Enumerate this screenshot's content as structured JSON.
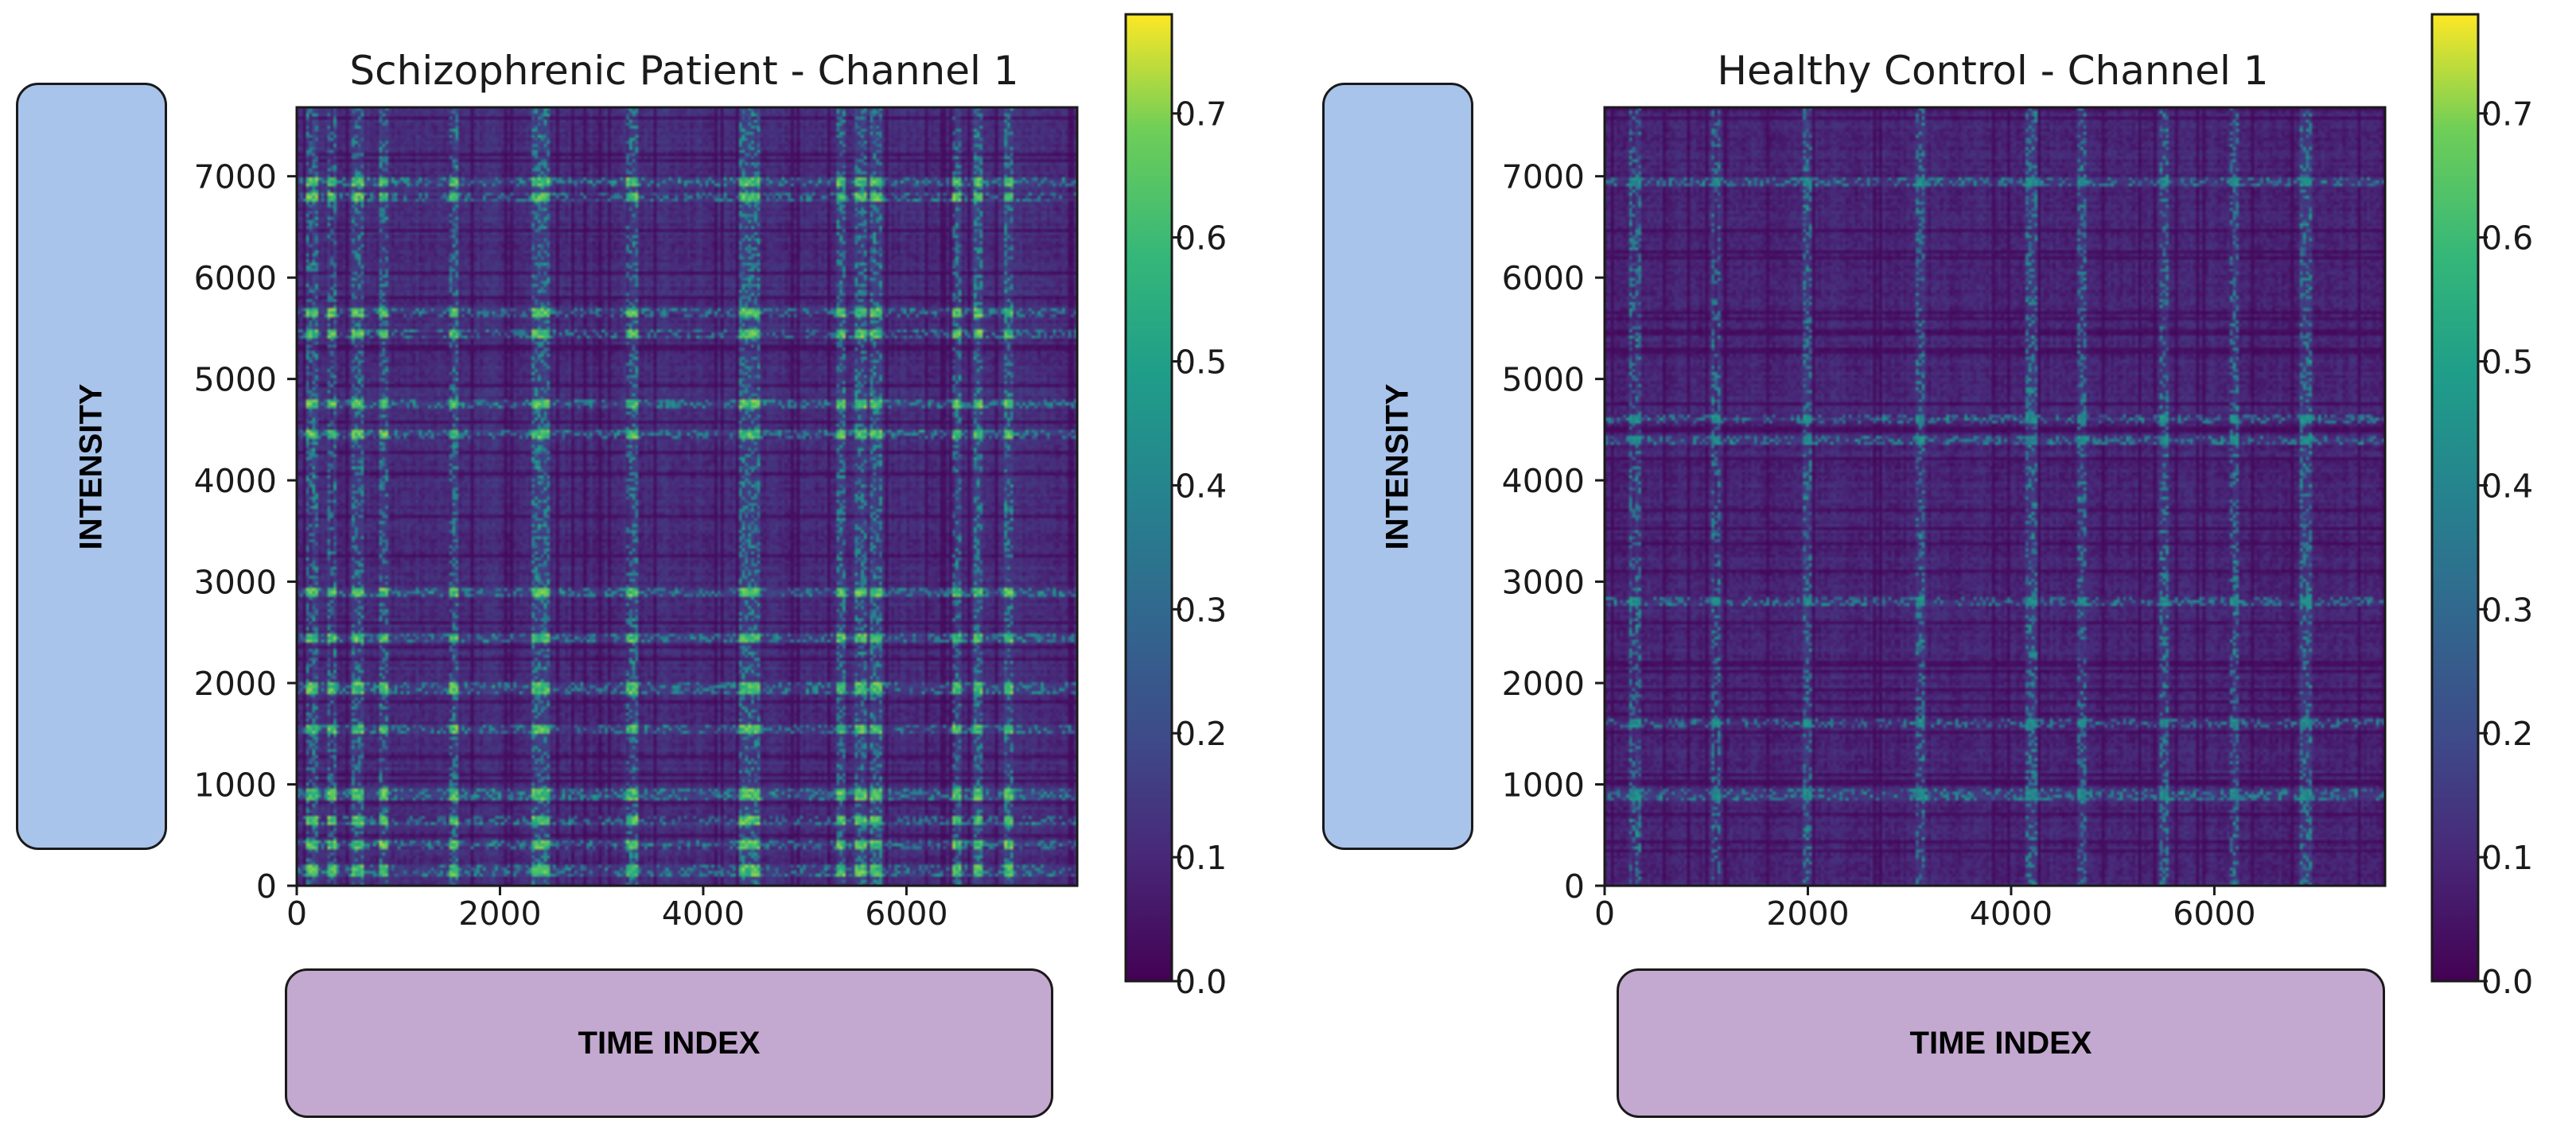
{
  "colors": {
    "panel_blue": "#a9c4ea",
    "panel_purple": "#c3a9cf"
  },
  "chart_data": [
    {
      "type": "heatmap",
      "title": "Schizophrenic Patient - Channel 1",
      "ylabel": "INTENSITY",
      "xlabel": "TIME INDEX",
      "xlim": [
        0,
        7680
      ],
      "ylim": [
        0,
        7680
      ],
      "xticks": [
        0,
        2000,
        4000,
        6000
      ],
      "yticks": [
        0,
        1000,
        2000,
        3000,
        4000,
        5000,
        6000,
        7000
      ],
      "colormap": "viridis",
      "clim": [
        0.0,
        0.78
      ],
      "colorbar_ticks": [
        "0.0",
        "0.1",
        "0.2",
        "0.3",
        "0.4",
        "0.5",
        "0.6",
        "0.7"
      ],
      "typical_value": 0.12,
      "bright_rows": [
        150,
        400,
        650,
        900,
        1550,
        1950,
        2450,
        2900,
        4450,
        4750,
        5450,
        5650,
        6800,
        6950
      ],
      "bright_cols": [
        150,
        350,
        600,
        850,
        1550,
        2350,
        2450,
        3300,
        4400,
        4500,
        5350,
        5550,
        5700,
        6500,
        6700,
        7000
      ],
      "peak_value": 0.72
    },
    {
      "type": "heatmap",
      "title": "Healthy Control - Channel 1",
      "ylabel": "INTENSITY",
      "xlabel": "TIME INDEX",
      "xlim": [
        0,
        7680
      ],
      "ylim": [
        0,
        7680
      ],
      "xticks": [
        0,
        2000,
        4000,
        6000
      ],
      "yticks": [
        0,
        1000,
        2000,
        3000,
        4000,
        5000,
        6000,
        7000
      ],
      "colormap": "viridis",
      "clim": [
        0.0,
        0.78
      ],
      "colorbar_ticks": [
        "0.0",
        "0.1",
        "0.2",
        "0.3",
        "0.4",
        "0.5",
        "0.6",
        "0.7"
      ],
      "typical_value": 0.1,
      "bright_rows": [
        900,
        1600,
        2800,
        4400,
        4600,
        6950
      ],
      "bright_cols": [
        300,
        1100,
        2000,
        3100,
        4200,
        4700,
        5500,
        6200,
        6900
      ],
      "peak_value": 0.5
    }
  ]
}
